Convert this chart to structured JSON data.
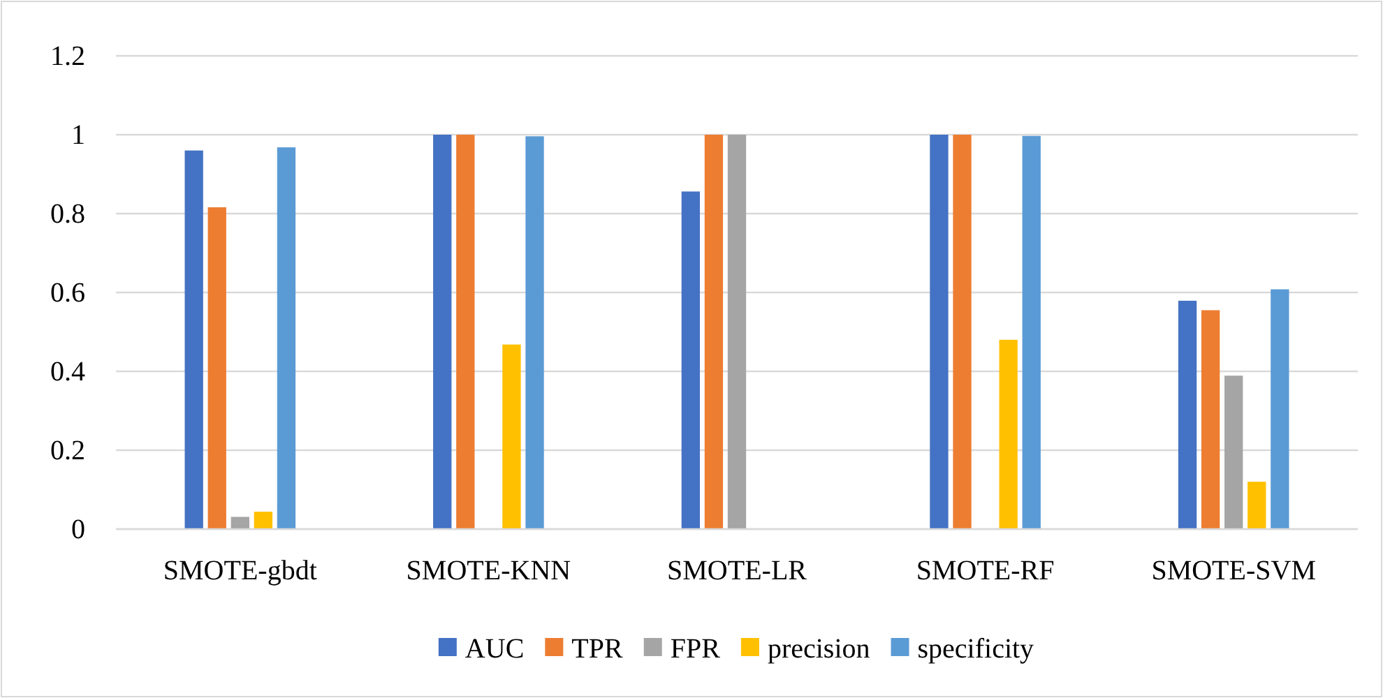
{
  "chart_data": {
    "type": "bar",
    "categories": [
      "SMOTE-gbdt",
      "SMOTE-KNN",
      "SMOTE-LR",
      "SMOTE-RF",
      "SMOTE-SVM"
    ],
    "series": [
      {
        "name": "AUC",
        "color": "#4472c4",
        "values": [
          0.96,
          1,
          0.856,
          1,
          0.579
        ]
      },
      {
        "name": "TPR",
        "color": "#ed7d31",
        "values": [
          0.816,
          1,
          1,
          1,
          0.555
        ]
      },
      {
        "name": "FPR",
        "color": "#a5a5a5",
        "values": [
          0.031,
          null,
          1,
          null,
          0.389
        ]
      },
      {
        "name": "precision",
        "color": "#ffc000",
        "values": [
          0.044,
          0.468,
          null,
          0.48,
          0.12
        ]
      },
      {
        "name": "specificity",
        "color": "#5b9bd5",
        "values": [
          0.968,
          0.996,
          0,
          0.997,
          0.608
        ]
      }
    ],
    "ylim": [
      0,
      1.2
    ],
    "yticks": [
      0,
      0.2,
      0.4,
      0.6,
      0.8,
      1,
      1.2
    ],
    "grid": "y",
    "legend": "bottom"
  }
}
